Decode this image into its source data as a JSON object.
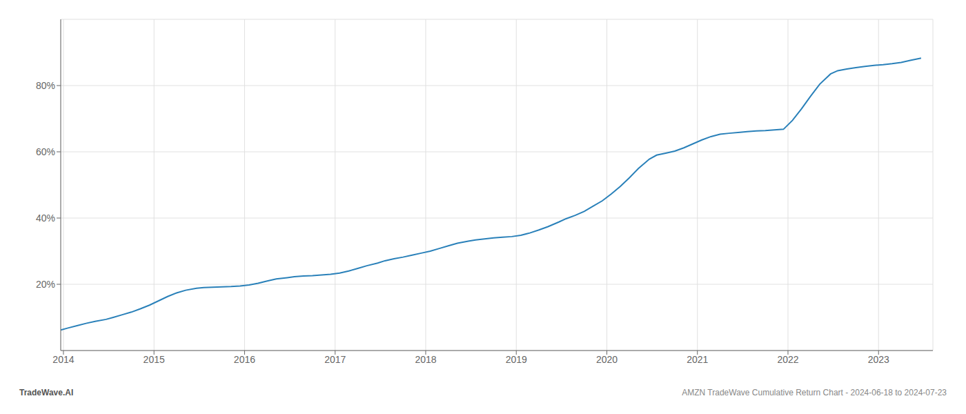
{
  "chart_data": {
    "type": "line",
    "color": "#2980b9",
    "grid": true,
    "annotations": [
      "TradeWave.AI",
      "AMZN TradeWave Cumulative Return Chart - 2024-06-18 to 2024-07-23"
    ],
    "x": [
      2013.97,
      2014.05,
      2014.15,
      2014.25,
      2014.35,
      2014.47,
      2014.55,
      2014.65,
      2014.75,
      2014.85,
      2014.95,
      2015.05,
      2015.15,
      2015.25,
      2015.35,
      2015.47,
      2015.55,
      2015.65,
      2015.75,
      2015.85,
      2015.95,
      2016.05,
      2016.15,
      2016.25,
      2016.35,
      2016.47,
      2016.55,
      2016.65,
      2016.75,
      2016.85,
      2016.95,
      2017.05,
      2017.15,
      2017.25,
      2017.35,
      2017.47,
      2017.55,
      2017.65,
      2017.75,
      2017.85,
      2017.95,
      2018.05,
      2018.15,
      2018.25,
      2018.35,
      2018.47,
      2018.55,
      2018.65,
      2018.75,
      2018.85,
      2018.95,
      2019.05,
      2019.15,
      2019.25,
      2019.35,
      2019.47,
      2019.55,
      2019.65,
      2019.75,
      2019.85,
      2019.95,
      2020.05,
      2020.15,
      2020.25,
      2020.35,
      2020.47,
      2020.55,
      2020.65,
      2020.75,
      2020.85,
      2020.95,
      2021.05,
      2021.15,
      2021.25,
      2021.35,
      2021.47,
      2021.55,
      2021.65,
      2021.75,
      2021.85,
      2021.95,
      2022.05,
      2022.15,
      2022.25,
      2022.35,
      2022.47,
      2022.55,
      2022.65,
      2022.75,
      2022.85,
      2022.95,
      2023.05,
      2023.15,
      2023.25,
      2023.35,
      2023.47
    ],
    "values": [
      0.062,
      0.068,
      0.075,
      0.082,
      0.088,
      0.094,
      0.1,
      0.108,
      0.116,
      0.126,
      0.137,
      0.15,
      0.163,
      0.174,
      0.182,
      0.188,
      0.19,
      0.191,
      0.192,
      0.193,
      0.195,
      0.198,
      0.203,
      0.21,
      0.216,
      0.22,
      0.223,
      0.225,
      0.226,
      0.228,
      0.23,
      0.234,
      0.24,
      0.248,
      0.256,
      0.264,
      0.271,
      0.277,
      0.282,
      0.288,
      0.294,
      0.3,
      0.308,
      0.316,
      0.324,
      0.33,
      0.334,
      0.337,
      0.34,
      0.342,
      0.344,
      0.348,
      0.355,
      0.364,
      0.374,
      0.388,
      0.398,
      0.408,
      0.42,
      0.436,
      0.452,
      0.473,
      0.496,
      0.522,
      0.55,
      0.578,
      0.59,
      0.596,
      0.602,
      0.612,
      0.624,
      0.636,
      0.646,
      0.653,
      0.656,
      0.659,
      0.661,
      0.663,
      0.664,
      0.666,
      0.668,
      0.695,
      0.73,
      0.768,
      0.804,
      0.835,
      0.845,
      0.85,
      0.854,
      0.858,
      0.861,
      0.863,
      0.866,
      0.87,
      0.876,
      0.883
    ],
    "xlim": [
      2013.97,
      2023.6
    ],
    "ylim": [
      0.0,
      1.0
    ],
    "xticks": [
      2014,
      2015,
      2016,
      2017,
      2018,
      2019,
      2020,
      2021,
      2022,
      2023
    ],
    "yticks": [
      {
        "value": 0.2,
        "label": "20%"
      },
      {
        "value": 0.4,
        "label": "40%"
      },
      {
        "value": 0.6,
        "label": "60%"
      },
      {
        "value": 0.8,
        "label": "80%"
      }
    ]
  }
}
